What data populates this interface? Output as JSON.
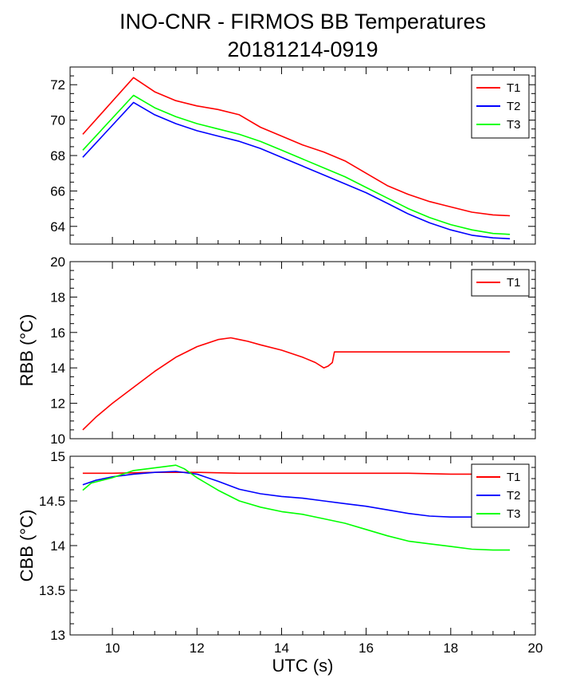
{
  "title": "INO-CNR - FIRMOS BB Temperatures",
  "subtitle": "20181214-0919",
  "colors": {
    "T1": "#ff0000",
    "T2": "#0000ff",
    "T3": "#00ff00"
  },
  "chart_data": [
    {
      "type": "line",
      "title": "INO-CNR - FIRMOS BB Temperatures",
      "subtitle": "20181214-0919",
      "xlabel": "",
      "ylabel": "",
      "xlim": [
        9,
        20
      ],
      "ylim": [
        63,
        73
      ],
      "yticks": [
        64,
        66,
        68,
        70,
        72
      ],
      "yticklabels": [
        "64",
        "66",
        "68",
        "70",
        "72"
      ],
      "legend": "top-right",
      "series": [
        {
          "name": "T1",
          "color": "#ff0000",
          "x": [
            9.3,
            10.5,
            11.0,
            11.5,
            12.0,
            12.5,
            13.0,
            13.5,
            14.0,
            14.5,
            15.0,
            15.5,
            16.0,
            16.5,
            17.0,
            17.5,
            18.0,
            18.5,
            19.0,
            19.4
          ],
          "y": [
            69.2,
            72.4,
            71.6,
            71.1,
            70.8,
            70.6,
            70.3,
            69.6,
            69.1,
            68.6,
            68.2,
            67.7,
            67.0,
            66.3,
            65.8,
            65.4,
            65.1,
            64.8,
            64.65,
            64.6
          ]
        },
        {
          "name": "T2",
          "color": "#0000ff",
          "x": [
            9.3,
            10.5,
            11.0,
            11.5,
            12.0,
            12.5,
            13.0,
            13.5,
            14.0,
            14.5,
            15.0,
            15.5,
            16.0,
            16.5,
            17.0,
            17.5,
            18.0,
            18.5,
            19.0,
            19.4
          ],
          "y": [
            67.9,
            71.0,
            70.3,
            69.8,
            69.4,
            69.1,
            68.8,
            68.4,
            67.9,
            67.4,
            66.9,
            66.4,
            65.9,
            65.3,
            64.7,
            64.2,
            63.8,
            63.5,
            63.35,
            63.3
          ]
        },
        {
          "name": "T3",
          "color": "#00ff00",
          "x": [
            9.3,
            10.5,
            11.0,
            11.5,
            12.0,
            12.5,
            13.0,
            13.5,
            14.0,
            14.5,
            15.0,
            15.5,
            16.0,
            16.5,
            17.0,
            17.5,
            18.0,
            18.5,
            19.0,
            19.4
          ],
          "y": [
            68.3,
            71.4,
            70.7,
            70.2,
            69.8,
            69.5,
            69.2,
            68.8,
            68.3,
            67.8,
            67.3,
            66.8,
            66.2,
            65.6,
            65.0,
            64.5,
            64.1,
            63.8,
            63.6,
            63.55
          ]
        }
      ]
    },
    {
      "type": "line",
      "xlabel": "",
      "ylabel": "RBB (°C)",
      "xlim": [
        9,
        20
      ],
      "ylim": [
        10,
        20
      ],
      "yticks": [
        10,
        12,
        14,
        16,
        18,
        20
      ],
      "yticklabels": [
        "10",
        "12",
        "14",
        "16",
        "18",
        "20"
      ],
      "legend": "top-right",
      "series": [
        {
          "name": "T1",
          "color": "#ff0000",
          "x": [
            9.3,
            9.6,
            10.0,
            10.5,
            11.0,
            11.5,
            12.0,
            12.5,
            12.8,
            13.0,
            13.2,
            13.5,
            14.0,
            14.5,
            14.8,
            15.0,
            15.1,
            15.2,
            15.25,
            19.4
          ],
          "y": [
            10.5,
            11.2,
            12.0,
            12.9,
            13.8,
            14.6,
            15.2,
            15.6,
            15.7,
            15.6,
            15.5,
            15.3,
            15.0,
            14.6,
            14.3,
            14.0,
            14.1,
            14.3,
            14.9,
            14.9
          ]
        }
      ]
    },
    {
      "type": "line",
      "xlabel": "UTC (s)",
      "ylabel": "CBB (°C)",
      "xlim": [
        9,
        20
      ],
      "ylim": [
        13,
        15
      ],
      "xticks": [
        10,
        12,
        14,
        16,
        18,
        20
      ],
      "xticklabels": [
        "10",
        "12",
        "14",
        "16",
        "18",
        "20"
      ],
      "yticks": [
        13,
        13.5,
        14,
        14.5,
        15
      ],
      "yticklabels": [
        "13",
        "13.5",
        "14",
        "14.5",
        "15"
      ],
      "legend": "top-right",
      "series": [
        {
          "name": "T1",
          "color": "#ff0000",
          "x": [
            9.3,
            10.0,
            11.0,
            12.0,
            13.0,
            14.0,
            15.0,
            16.0,
            17.0,
            18.0,
            19.0,
            19.4
          ],
          "y": [
            14.81,
            14.81,
            14.82,
            14.82,
            14.81,
            14.81,
            14.81,
            14.81,
            14.81,
            14.8,
            14.8,
            14.8
          ]
        },
        {
          "name": "T2",
          "color": "#0000ff",
          "x": [
            9.3,
            9.6,
            10.0,
            10.5,
            11.0,
            11.5,
            12.0,
            12.5,
            13.0,
            13.5,
            14.0,
            14.5,
            15.0,
            15.5,
            16.0,
            16.5,
            17.0,
            17.5,
            18.0,
            18.5,
            19.0,
            19.4
          ],
          "y": [
            14.68,
            14.73,
            14.77,
            14.8,
            14.82,
            14.83,
            14.8,
            14.72,
            14.63,
            14.58,
            14.55,
            14.53,
            14.5,
            14.47,
            14.44,
            14.4,
            14.36,
            14.33,
            14.32,
            14.32,
            14.32,
            14.32
          ]
        },
        {
          "name": "T3",
          "color": "#00ff00",
          "x": [
            9.3,
            9.5,
            10.0,
            10.5,
            11.0,
            11.5,
            11.7,
            12.0,
            12.5,
            13.0,
            13.5,
            14.0,
            14.5,
            15.0,
            15.5,
            16.0,
            16.5,
            17.0,
            17.5,
            18.0,
            18.5,
            19.0,
            19.4
          ],
          "y": [
            14.62,
            14.7,
            14.76,
            14.84,
            14.87,
            14.9,
            14.86,
            14.76,
            14.62,
            14.5,
            14.43,
            14.38,
            14.35,
            14.3,
            14.25,
            14.18,
            14.11,
            14.05,
            14.02,
            13.99,
            13.96,
            13.95,
            13.95
          ]
        }
      ]
    }
  ]
}
